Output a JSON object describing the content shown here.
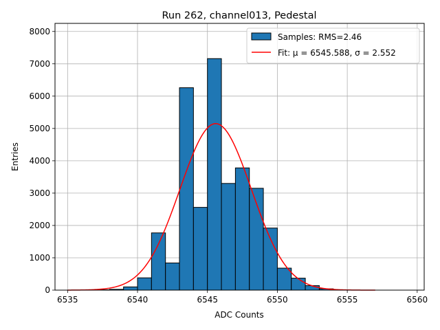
{
  "chart_data": {
    "type": "bar",
    "title": "Run 262, channel013, Pedestal",
    "xlabel": "ADC Counts",
    "ylabel": "Entries",
    "xlim": [
      6534.1,
      6560.5
    ],
    "ylim": [
      0,
      8250
    ],
    "xticks": [
      6535,
      6540,
      6545,
      6550,
      6555,
      6560
    ],
    "yticks": [
      0,
      1000,
      2000,
      3000,
      4000,
      5000,
      6000,
      7000,
      8000
    ],
    "grid": true,
    "legend_position": "top-right",
    "bin_width": 1,
    "bins": [
      {
        "left": 6537,
        "value": 10
      },
      {
        "left": 6538,
        "value": 25
      },
      {
        "left": 6539,
        "value": 100
      },
      {
        "left": 6540,
        "value": 380
      },
      {
        "left": 6541,
        "value": 1770
      },
      {
        "left": 6542,
        "value": 840
      },
      {
        "left": 6543,
        "value": 6260
      },
      {
        "left": 6544,
        "value": 2560
      },
      {
        "left": 6545,
        "value": 7160
      },
      {
        "left": 6546,
        "value": 3300
      },
      {
        "left": 6547,
        "value": 3780
      },
      {
        "left": 6548,
        "value": 3150
      },
      {
        "left": 6549,
        "value": 1920
      },
      {
        "left": 6550,
        "value": 680
      },
      {
        "left": 6551,
        "value": 370
      },
      {
        "left": 6552,
        "value": 140
      },
      {
        "left": 6553,
        "value": 40
      },
      {
        "left": 6554,
        "value": 10
      }
    ],
    "series": [
      {
        "name": "Samples: RMS=2.46",
        "kind": "histogram",
        "color": "#1f77b4"
      },
      {
        "name": "Fit: μ = 6545.588, σ = 2.552",
        "kind": "gaussian-fit",
        "color": "#ff0000",
        "mu": 6545.588,
        "sigma": 2.552,
        "amplitude": 5150,
        "range": [
          6535,
          6557
        ]
      }
    ]
  }
}
